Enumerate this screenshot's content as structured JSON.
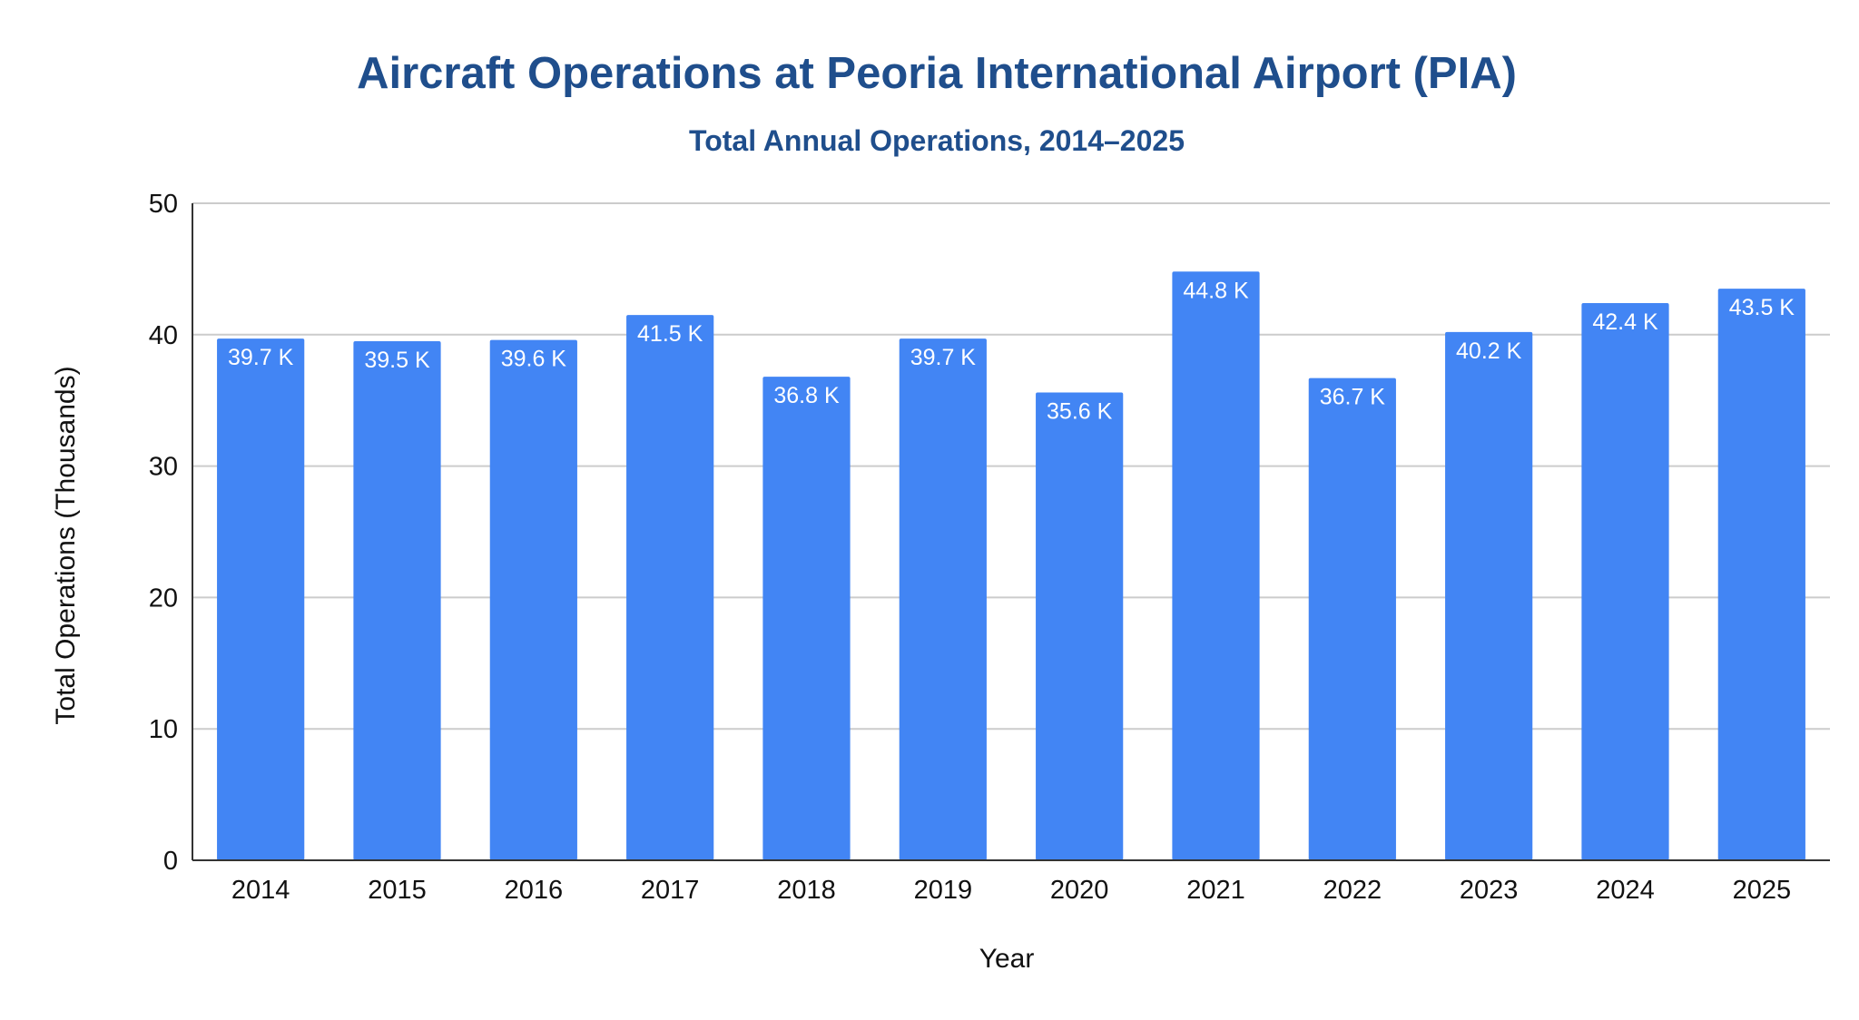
{
  "chart_data": {
    "type": "bar",
    "title": "Aircraft Operations at Peoria International Airport (PIA)",
    "subtitle": "Total Annual Operations, 2014–2025",
    "xlabel": "Year",
    "ylabel": "Total Operations (Thousands)",
    "categories": [
      "2014",
      "2015",
      "2016",
      "2017",
      "2018",
      "2019",
      "2020",
      "2021",
      "2022",
      "2023",
      "2024",
      "2025"
    ],
    "values": [
      39.7,
      39.5,
      39.6,
      41.5,
      36.8,
      39.7,
      35.6,
      44.8,
      36.7,
      40.2,
      42.4,
      43.5
    ],
    "data_labels": [
      "39.7 K",
      "39.5 K",
      "39.6 K",
      "41.5 K",
      "36.8 K",
      "39.7 K",
      "35.6 K",
      "44.8 K",
      "36.7 K",
      "40.2 K",
      "42.4 K",
      "43.5 K"
    ],
    "yticks": [
      "0",
      "10",
      "20",
      "30",
      "40",
      "50"
    ],
    "ylim": [
      0,
      50
    ],
    "grid": true,
    "legend": "none",
    "colors": {
      "bar": "#4285f4",
      "title": "#1f4e8c",
      "grid": "#cccccc",
      "axis": "#333333",
      "data_label": "#ffffff"
    }
  }
}
